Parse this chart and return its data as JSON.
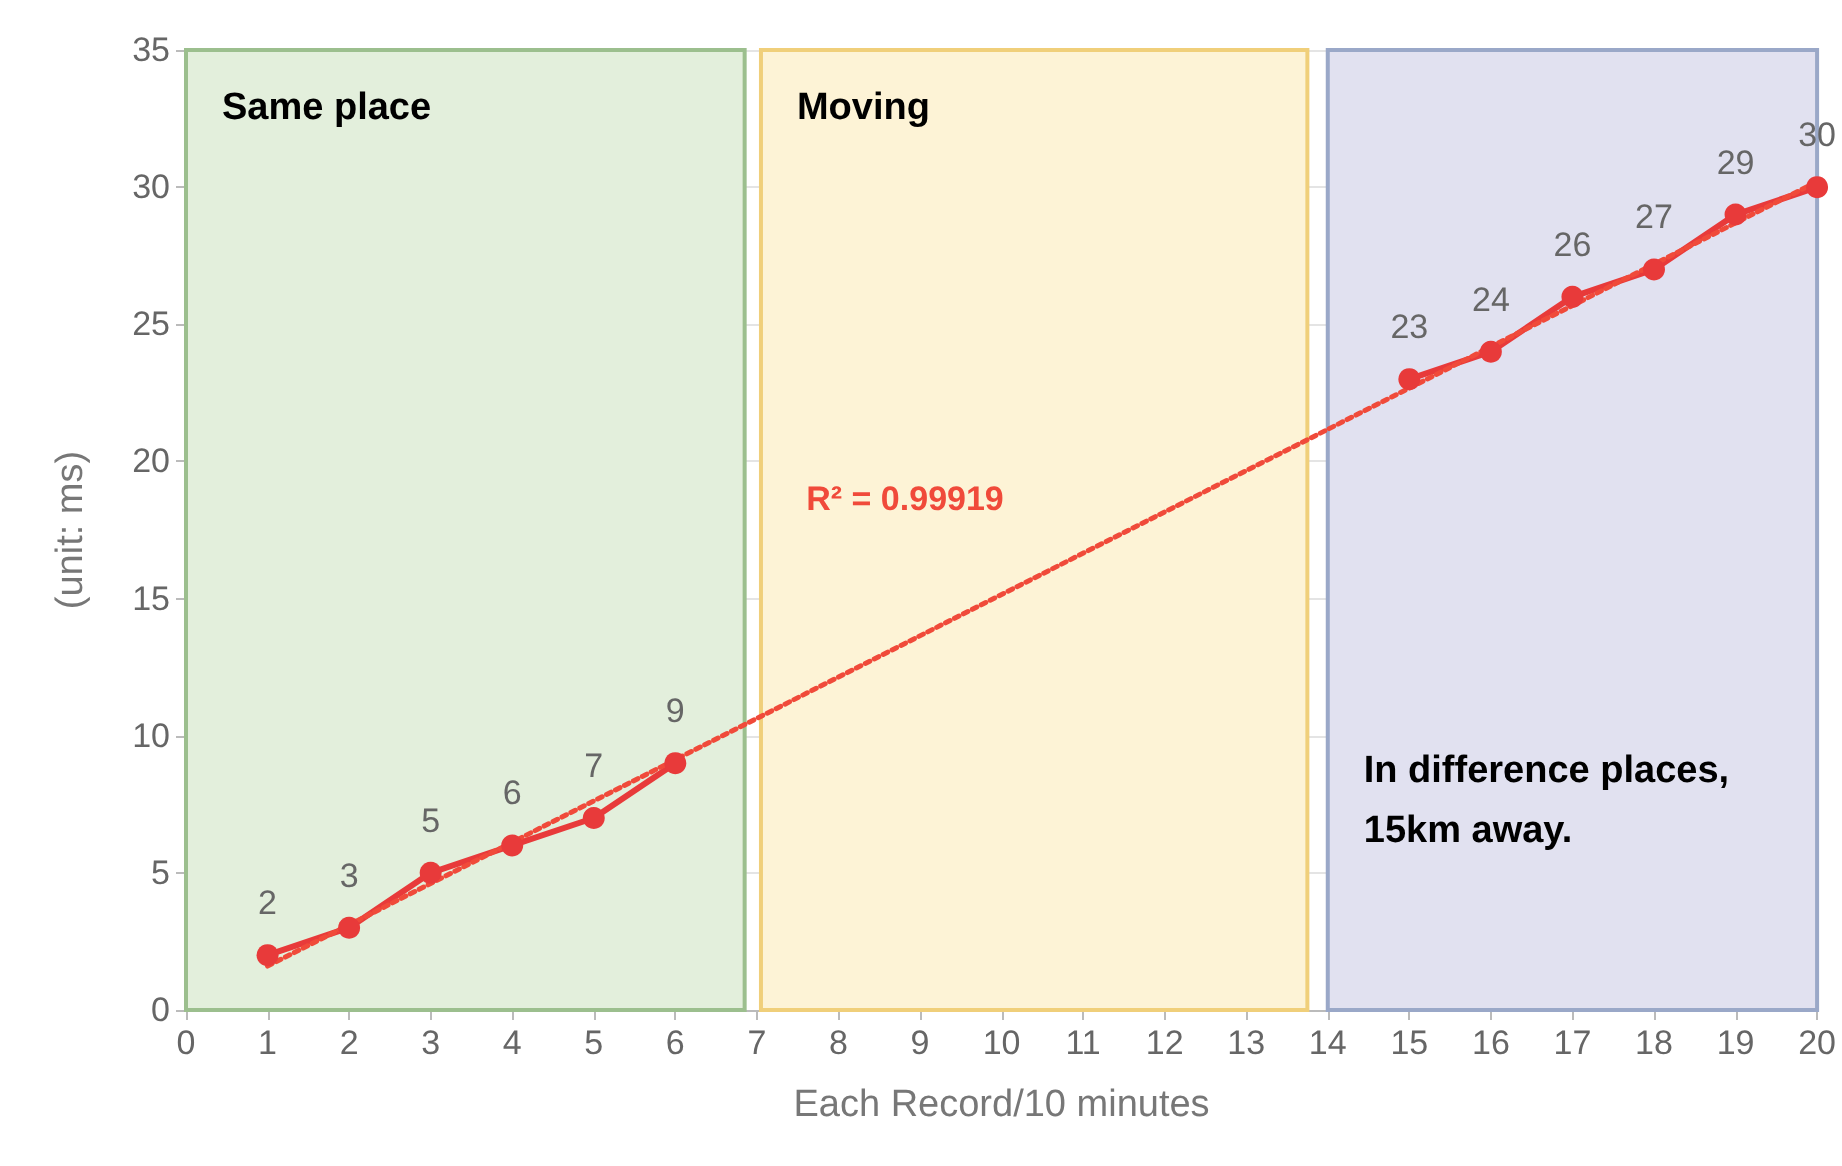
{
  "chart_data": {
    "type": "line",
    "xlabel": "Each Record/10 minutes",
    "ylabel": "(unit: ms)",
    "xlim": [
      0,
      20
    ],
    "xticks": [
      0,
      1,
      2,
      3,
      4,
      5,
      6,
      7,
      8,
      9,
      10,
      11,
      12,
      13,
      14,
      15,
      16,
      17,
      18,
      19,
      20
    ],
    "ylim": [
      0,
      35
    ],
    "yticks": [
      0,
      5,
      10,
      15,
      20,
      25,
      30,
      35
    ],
    "grid": "y",
    "marker": "circle",
    "series": [
      {
        "color": "#e83a3a",
        "x": [
          1,
          2,
          3,
          4,
          5,
          6
        ],
        "values": [
          2,
          3,
          5,
          6,
          7,
          9
        ],
        "value_labels": [
          "2",
          "3",
          "5",
          "6",
          "7",
          "9"
        ]
      },
      {
        "color": "#e83a3a",
        "x": [
          15,
          16,
          17,
          18,
          19,
          20
        ],
        "values": [
          23,
          24,
          26,
          27,
          29,
          30
        ],
        "value_labels": [
          "23",
          "24",
          "26",
          "27",
          "29",
          "30"
        ]
      },
      {
        "type": "line",
        "color": "#f04a3a",
        "x": [
          1,
          20
        ],
        "values": [
          1.6,
          30.2
        ],
        "line_style": "dotted",
        "marker": "none"
      }
    ],
    "bands": [
      {
        "axis": "x",
        "from": 0,
        "to": 6.85,
        "label": "Same place",
        "color": "#e3efdc"
      },
      {
        "axis": "x",
        "from": 7.05,
        "to": 13.75,
        "label": "Moving",
        "color": "#fdf3d6"
      },
      {
        "axis": "x",
        "from": 14,
        "to": 20,
        "label": "In difference places,\n15km away.",
        "color": "#e1e1f0"
      }
    ],
    "annotations": [
      "R² = 0.99919"
    ]
  }
}
